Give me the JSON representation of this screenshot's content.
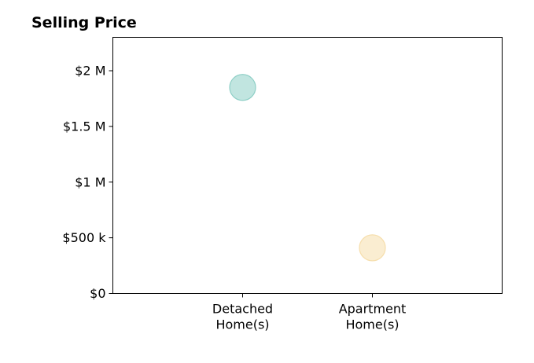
{
  "chart_data": {
    "type": "scatter",
    "title": "Selling Price",
    "xlabel": "",
    "ylabel": "",
    "categories": [
      {
        "line1": "Detached",
        "line2": "Home(s)"
      },
      {
        "line1": "Apartment",
        "line2": "Home(s)"
      }
    ],
    "xlim": [
      -1,
      2
    ],
    "ylim": [
      0,
      2300000
    ],
    "y_ticks": [
      {
        "value": 0,
        "label": "$0"
      },
      {
        "value": 500000,
        "label": "$500 k"
      },
      {
        "value": 1000000,
        "label": "$1 M"
      },
      {
        "value": 1500000,
        "label": "$1.5 M"
      },
      {
        "value": 2000000,
        "label": "$2 M"
      }
    ],
    "points": [
      {
        "category_index": 0,
        "value": 1850000,
        "color": "#8ecfc6"
      },
      {
        "category_index": 1,
        "value": 410000,
        "color": "#f6deac"
      }
    ],
    "grid": false,
    "legend": "none"
  }
}
